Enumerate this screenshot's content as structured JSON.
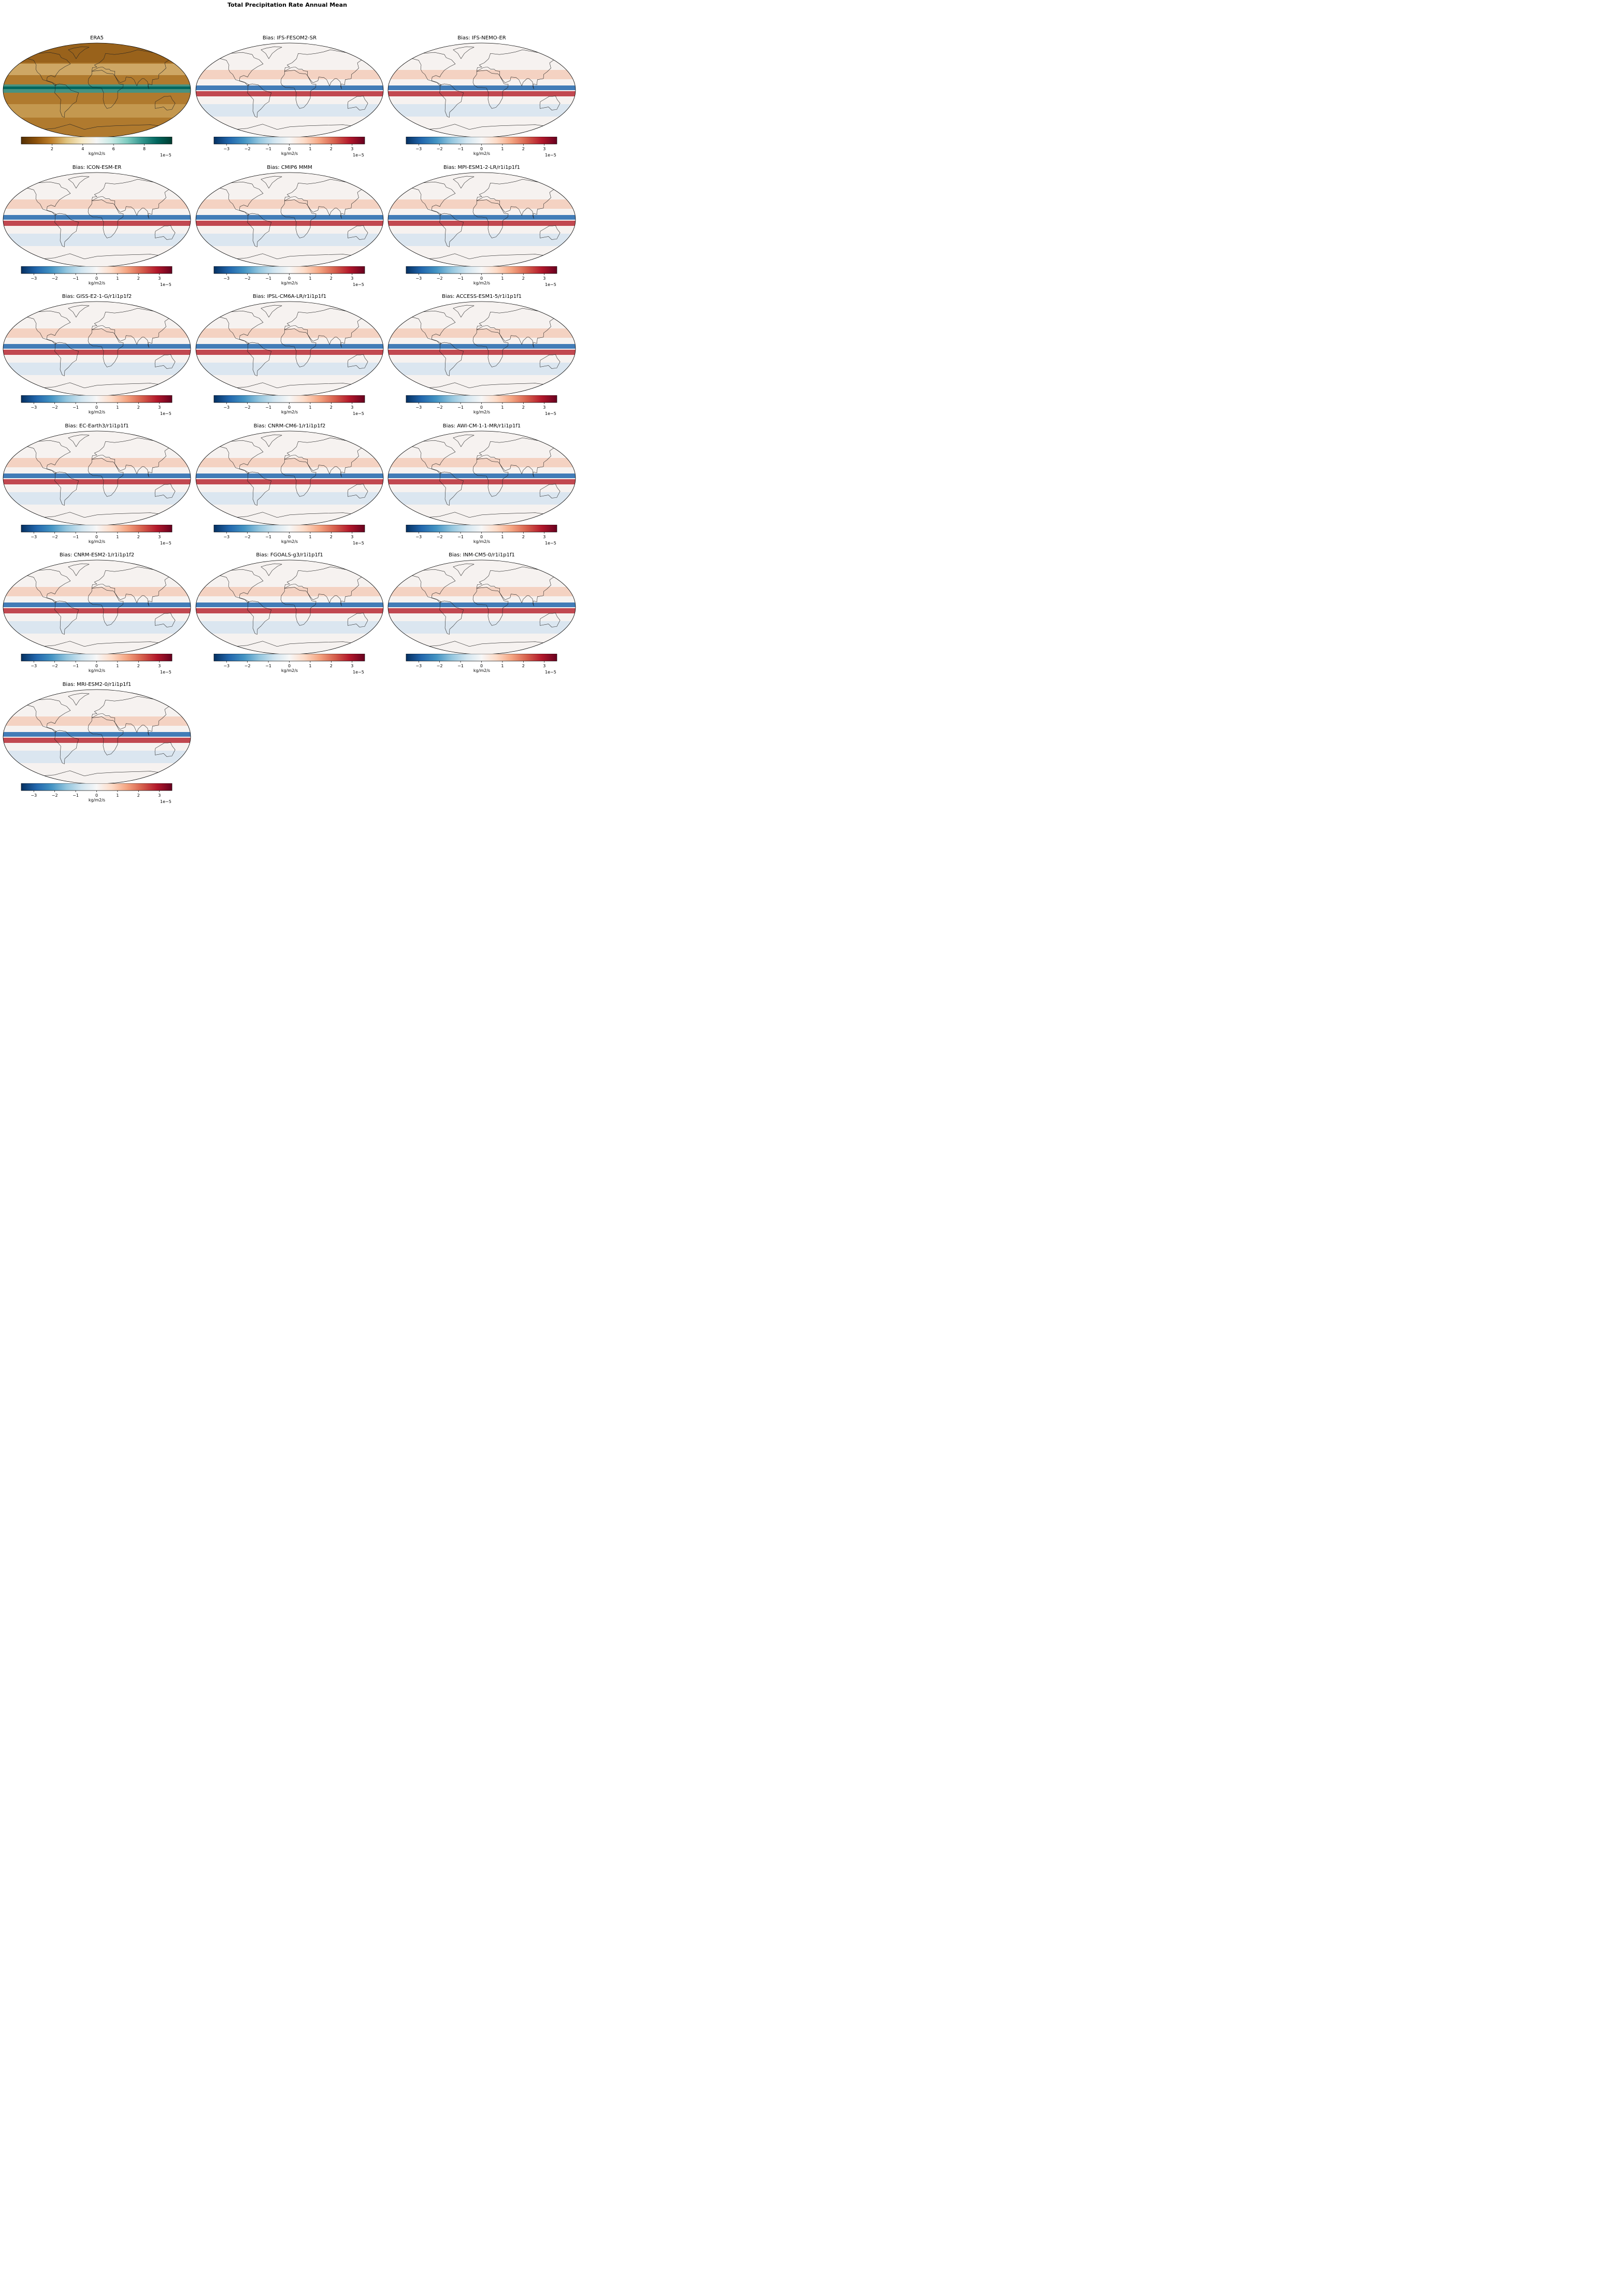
{
  "figure": {
    "title": "Total Precipitation Rate Annual Mean"
  },
  "chart_data": {
    "type": "heatmap",
    "projection": "global map",
    "colorbar_label": "kg/m2/s",
    "colorbar_offset": "1e−5",
    "panels": [
      {
        "title": "ERA5",
        "kind": "climatology",
        "cmap": "BrBG",
        "vmin": 0,
        "vmax": 9.8,
        "ticks": [
          2,
          4,
          6,
          8
        ],
        "stops": [
          "#543005",
          "#8c510a",
          "#bf812d",
          "#dfc27d",
          "#f6e8c3",
          "#f5f5f5",
          "#c7eae5",
          "#80cdc1",
          "#35978f",
          "#01665e",
          "#003c30"
        ]
      },
      {
        "title": "Bias: IFS-FESOM2-SR",
        "kind": "bias",
        "cmap": "RdBu_r",
        "vmin": -3.6,
        "vmax": 3.6,
        "ticks": [
          -3,
          -2,
          -1,
          0,
          1,
          2,
          3
        ]
      },
      {
        "title": "Bias: IFS-NEMO-ER",
        "kind": "bias",
        "cmap": "RdBu_r",
        "vmin": -3.6,
        "vmax": 3.6,
        "ticks": [
          -3,
          -2,
          -1,
          0,
          1,
          2,
          3
        ]
      },
      {
        "title": "Bias: ICON-ESM-ER",
        "kind": "bias",
        "cmap": "RdBu_r",
        "vmin": -3.6,
        "vmax": 3.6,
        "ticks": [
          -3,
          -2,
          -1,
          0,
          1,
          2,
          3
        ]
      },
      {
        "title": "Bias: CMIP6 MMM",
        "kind": "bias",
        "cmap": "RdBu_r",
        "vmin": -3.6,
        "vmax": 3.6,
        "ticks": [
          -3,
          -2,
          -1,
          0,
          1,
          2,
          3
        ]
      },
      {
        "title": "Bias: MPI-ESM1-2-LR/r1i1p1f1",
        "kind": "bias",
        "cmap": "RdBu_r",
        "vmin": -3.6,
        "vmax": 3.6,
        "ticks": [
          -3,
          -2,
          -1,
          0,
          1,
          2,
          3
        ]
      },
      {
        "title": "Bias: GISS-E2-1-G/r1i1p1f2",
        "kind": "bias",
        "cmap": "RdBu_r",
        "vmin": -3.6,
        "vmax": 3.6,
        "ticks": [
          -3,
          -2,
          -1,
          0,
          1,
          2,
          3
        ]
      },
      {
        "title": "Bias: IPSL-CM6A-LR/r1i1p1f1",
        "kind": "bias",
        "cmap": "RdBu_r",
        "vmin": -3.6,
        "vmax": 3.6,
        "ticks": [
          -3,
          -2,
          -1,
          0,
          1,
          2,
          3
        ]
      },
      {
        "title": "Bias: ACCESS-ESM1-5/r1i1p1f1",
        "kind": "bias",
        "cmap": "RdBu_r",
        "vmin": -3.6,
        "vmax": 3.6,
        "ticks": [
          -3,
          -2,
          -1,
          0,
          1,
          2,
          3
        ]
      },
      {
        "title": "Bias: EC-Earth3/r1i1p1f1",
        "kind": "bias",
        "cmap": "RdBu_r",
        "vmin": -3.6,
        "vmax": 3.6,
        "ticks": [
          -3,
          -2,
          -1,
          0,
          1,
          2,
          3
        ]
      },
      {
        "title": "Bias: CNRM-CM6-1/r1i1p1f2",
        "kind": "bias",
        "cmap": "RdBu_r",
        "vmin": -3.6,
        "vmax": 3.6,
        "ticks": [
          -3,
          -2,
          -1,
          0,
          1,
          2,
          3
        ]
      },
      {
        "title": "Bias: AWI-CM-1-1-MR/r1i1p1f1",
        "kind": "bias",
        "cmap": "RdBu_r",
        "vmin": -3.6,
        "vmax": 3.6,
        "ticks": [
          -3,
          -2,
          -1,
          0,
          1,
          2,
          3
        ]
      },
      {
        "title": "Bias: CNRM-ESM2-1/r1i1p1f2",
        "kind": "bias",
        "cmap": "RdBu_r",
        "vmin": -3.6,
        "vmax": 3.6,
        "ticks": [
          -3,
          -2,
          -1,
          0,
          1,
          2,
          3
        ]
      },
      {
        "title": "Bias: FGOALS-g3/r1i1p1f1",
        "kind": "bias",
        "cmap": "RdBu_r",
        "vmin": -3.6,
        "vmax": 3.6,
        "ticks": [
          -3,
          -2,
          -1,
          0,
          1,
          2,
          3
        ]
      },
      {
        "title": "Bias: INM-CM5-0/r1i1p1f1",
        "kind": "bias",
        "cmap": "RdBu_r",
        "vmin": -3.6,
        "vmax": 3.6,
        "ticks": [
          -3,
          -2,
          -1,
          0,
          1,
          2,
          3
        ]
      },
      {
        "title": "Bias: MRI-ESM2-0/r1i1p1f1",
        "kind": "bias",
        "cmap": "RdBu_r",
        "vmin": -3.6,
        "vmax": 3.6,
        "ticks": [
          -3,
          -2,
          -1,
          0,
          1,
          2,
          3
        ]
      }
    ],
    "bias_stops": [
      "#053061",
      "#2166ac",
      "#4393c3",
      "#92c5de",
      "#d1e5f0",
      "#f7f7f7",
      "#fddbc7",
      "#f4a582",
      "#d6604d",
      "#b2182b",
      "#67001f"
    ]
  }
}
